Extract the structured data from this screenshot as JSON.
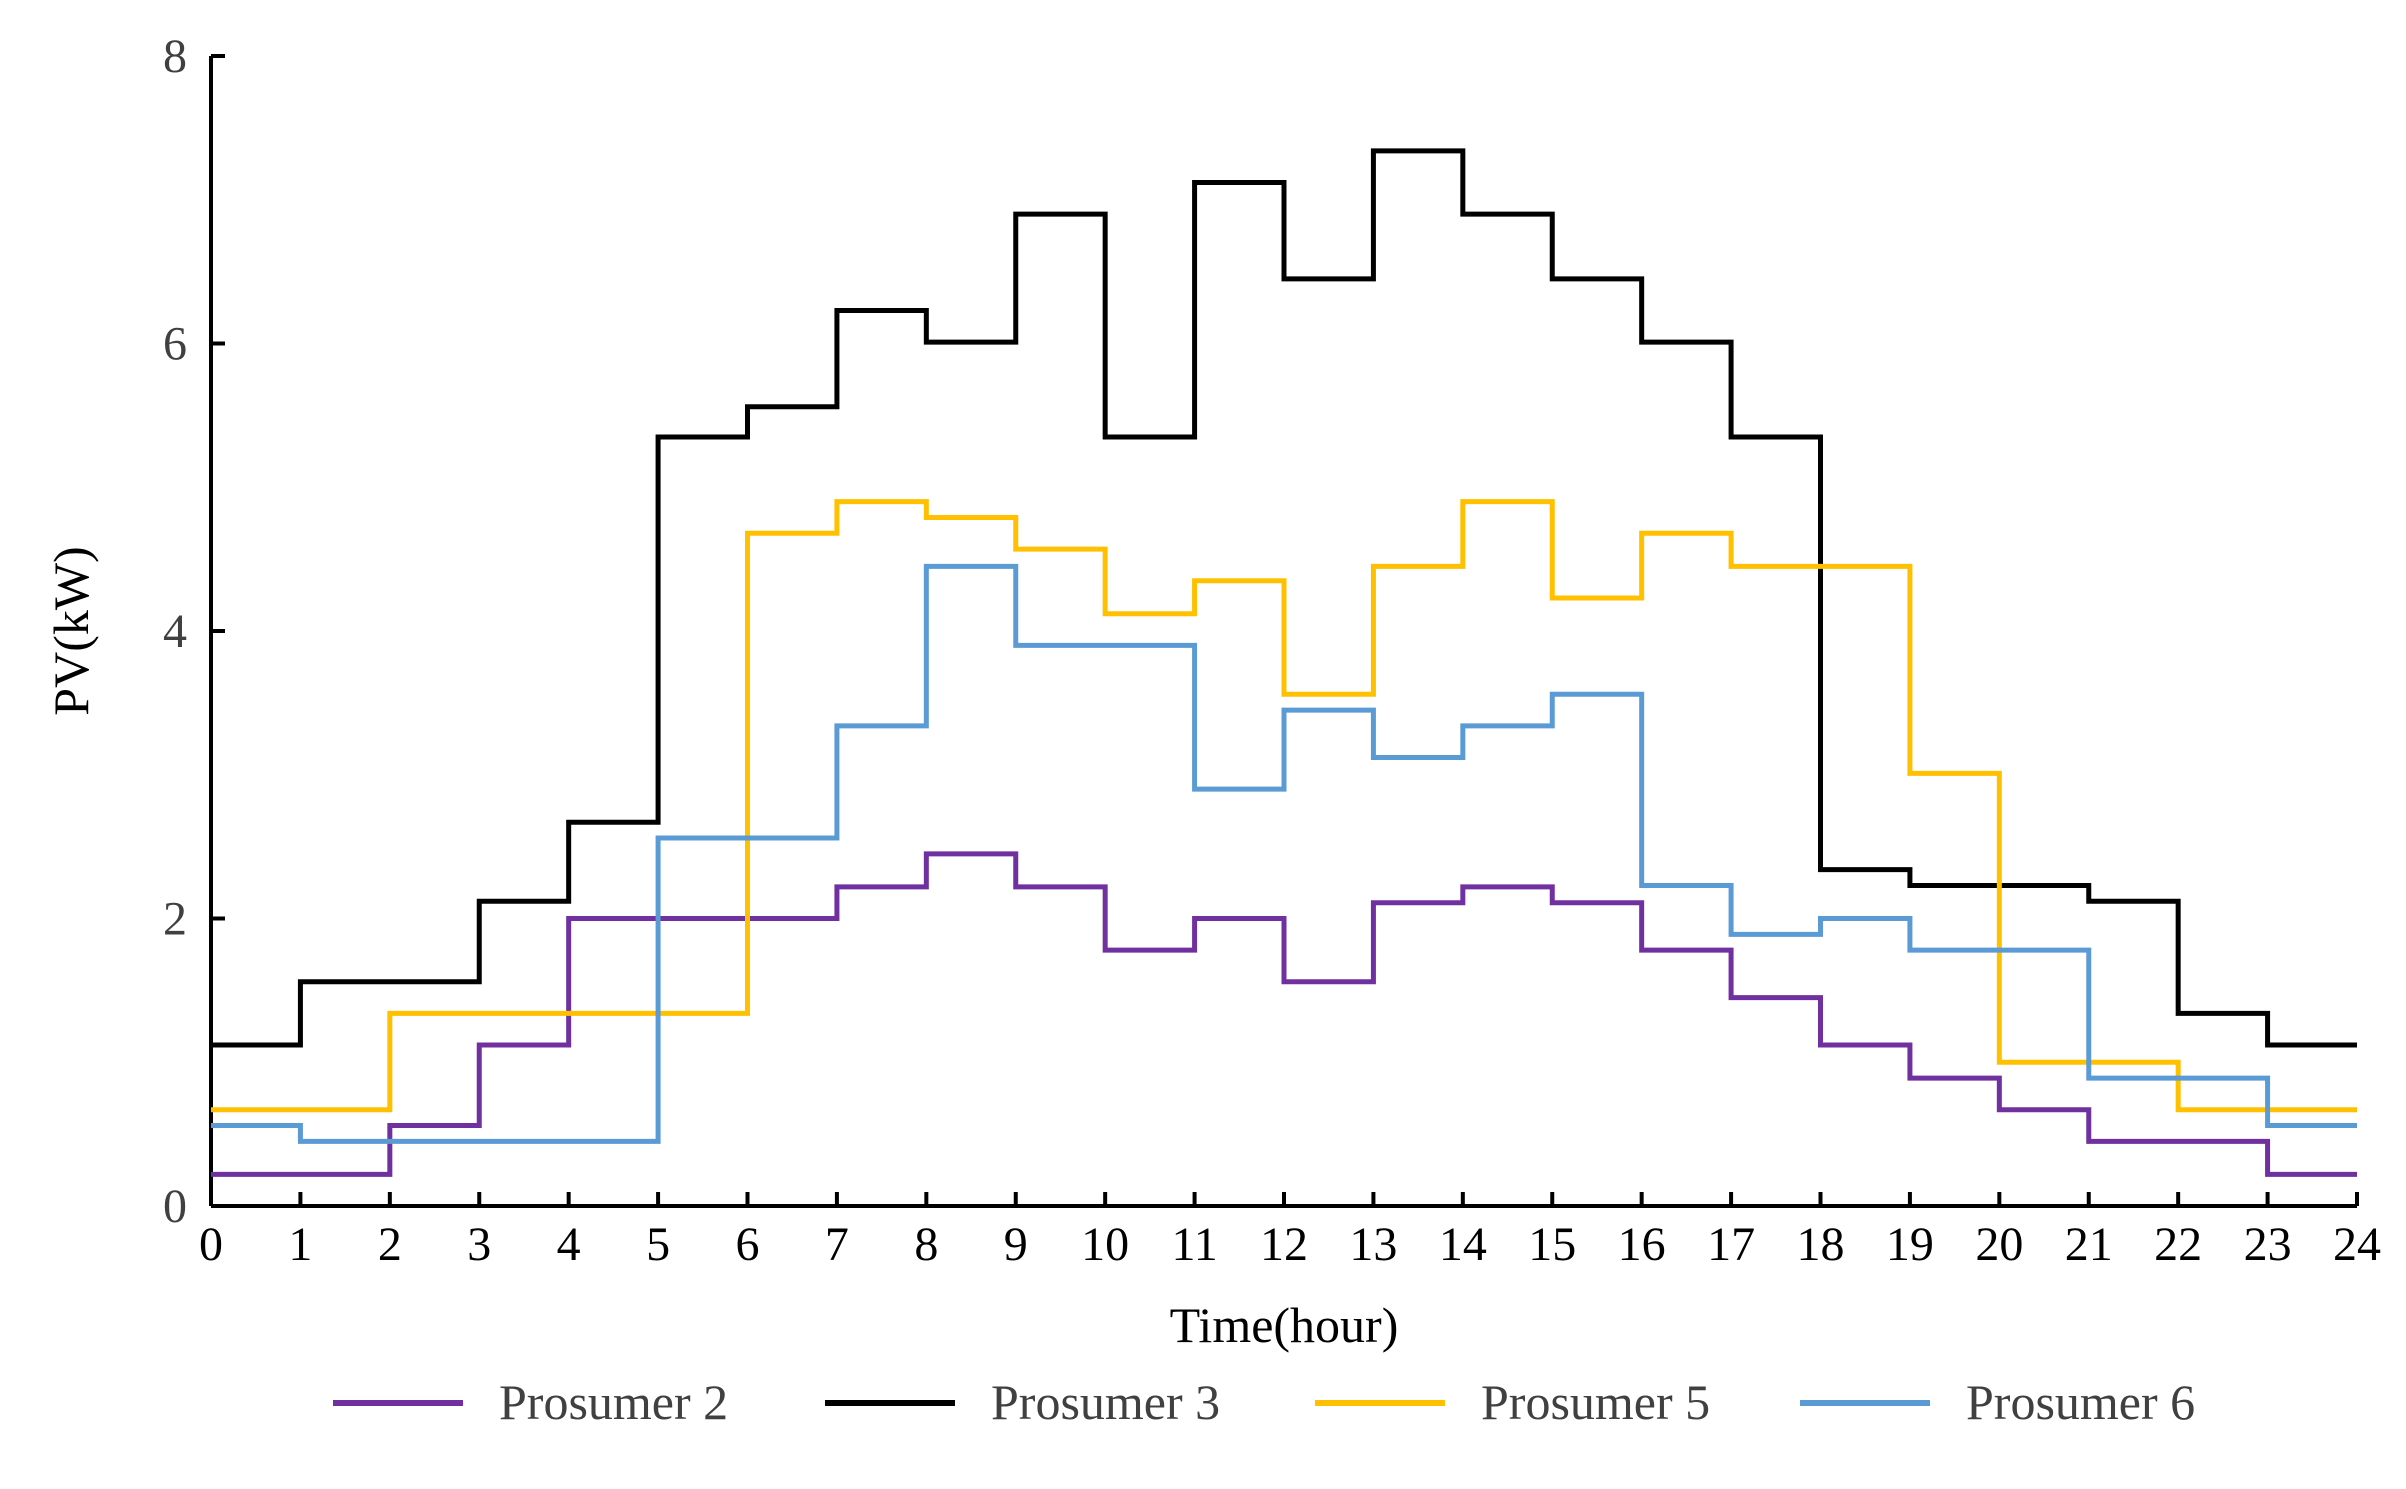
{
  "chart_data": {
    "type": "line",
    "step": true,
    "title": "",
    "xlabel": "Time(hour)",
    "ylabel": "PV(kW)",
    "xlim": [
      0,
      24
    ],
    "ylim": [
      0,
      8
    ],
    "x_ticks": [
      0,
      1,
      2,
      3,
      4,
      5,
      6,
      7,
      8,
      9,
      10,
      11,
      12,
      13,
      14,
      15,
      16,
      17,
      18,
      19,
      20,
      21,
      22,
      23,
      24
    ],
    "y_ticks": [
      0,
      2,
      4,
      6,
      8
    ],
    "grid": false,
    "legend_position": "bottom",
    "series": [
      {
        "name": "Prosumer 2",
        "color": "#7030a0",
        "values": [
          0.22,
          0.22,
          0.56,
          1.12,
          2.0,
          2.0,
          2.0,
          2.22,
          2.45,
          2.22,
          1.78,
          2.0,
          1.56,
          2.11,
          2.22,
          2.11,
          1.78,
          1.45,
          1.12,
          0.89,
          0.67,
          0.45,
          0.45,
          0.22
        ]
      },
      {
        "name": "Prosumer 3",
        "color": "#000000",
        "values": [
          1.12,
          1.56,
          1.56,
          2.12,
          2.67,
          5.35,
          5.56,
          6.23,
          6.01,
          6.9,
          5.35,
          7.12,
          6.45,
          7.34,
          6.9,
          6.45,
          6.01,
          5.35,
          2.34,
          2.23,
          2.23,
          2.12,
          1.34,
          1.12
        ]
      },
      {
        "name": "Prosumer 5",
        "color": "#ffc000",
        "values": [
          0.67,
          0.67,
          1.34,
          1.34,
          1.34,
          1.34,
          4.68,
          4.9,
          4.79,
          4.57,
          4.12,
          4.35,
          3.56,
          4.45,
          4.9,
          4.23,
          4.68,
          4.45,
          4.45,
          3.01,
          1.0,
          1.0,
          0.67,
          0.67
        ]
      },
      {
        "name": "Prosumer 6",
        "color": "#5b9bd5",
        "values": [
          0.56,
          0.45,
          0.45,
          0.45,
          0.45,
          2.56,
          2.56,
          3.34,
          4.45,
          3.9,
          3.9,
          2.9,
          3.45,
          3.12,
          3.34,
          3.56,
          2.23,
          1.89,
          2.0,
          1.78,
          1.78,
          0.89,
          0.89,
          0.56
        ]
      }
    ]
  }
}
